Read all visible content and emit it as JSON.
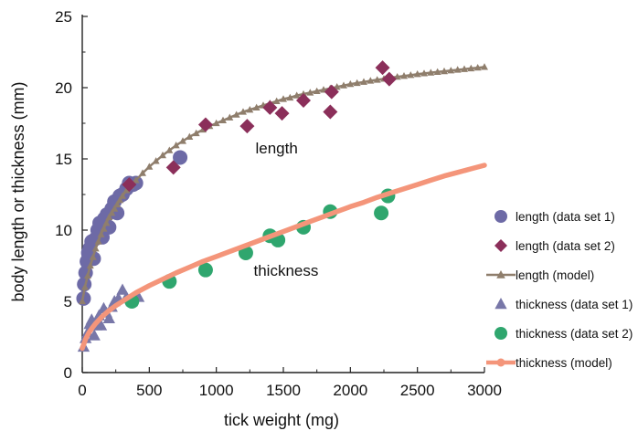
{
  "chart_data": {
    "type": "scatter",
    "xlabel": "tick weight (mg)",
    "ylabel": "body length or thickness (mm)",
    "xlim": [
      0,
      3000
    ],
    "ylim": [
      0,
      25
    ],
    "xticks": [
      0,
      500,
      1000,
      1500,
      2000,
      2500,
      3000
    ],
    "yticks": [
      0,
      5,
      10,
      15,
      20,
      25
    ],
    "grid": false,
    "legend_position": "right",
    "annotations": [
      {
        "text": "length",
        "x": 1450,
        "y": 15.4
      },
      {
        "text": "thickness",
        "x": 1520,
        "y": 6.8
      }
    ],
    "series": [
      {
        "name": "length (data set 1)",
        "kind": "scatter",
        "marker": "circle",
        "color": "#6d6aa6",
        "points": [
          [
            10,
            5.2
          ],
          [
            15,
            6.2
          ],
          [
            25,
            7.0
          ],
          [
            35,
            7.8
          ],
          [
            45,
            8.4
          ],
          [
            55,
            8.7
          ],
          [
            70,
            9.2
          ],
          [
            85,
            8.0
          ],
          [
            100,
            9.4
          ],
          [
            115,
            10.0
          ],
          [
            130,
            10.5
          ],
          [
            150,
            9.5
          ],
          [
            165,
            10.8
          ],
          [
            185,
            11.1
          ],
          [
            200,
            10.2
          ],
          [
            220,
            11.5
          ],
          [
            240,
            12.0
          ],
          [
            260,
            11.2
          ],
          [
            280,
            12.4
          ],
          [
            300,
            12.5
          ],
          [
            330,
            12.9
          ],
          [
            350,
            13.3
          ],
          [
            380,
            13.2
          ],
          [
            400,
            13.3
          ],
          [
            730,
            15.1
          ]
        ]
      },
      {
        "name": "length (data set 2)",
        "kind": "scatter",
        "marker": "diamond",
        "color": "#8b2f5a",
        "points": [
          [
            350,
            13.2
          ],
          [
            680,
            14.4
          ],
          [
            920,
            17.4
          ],
          [
            1230,
            17.3
          ],
          [
            1400,
            18.6
          ],
          [
            1490,
            18.2
          ],
          [
            1650,
            19.1
          ],
          [
            1850,
            18.3
          ],
          [
            1860,
            19.7
          ],
          [
            2240,
            21.4
          ],
          [
            2290,
            20.6
          ]
        ]
      },
      {
        "name": "length (model)",
        "kind": "line",
        "marker": "triangle",
        "color": "#8f7e6c",
        "x": [
          0,
          20,
          40,
          60,
          80,
          100,
          120,
          140,
          160,
          180,
          200,
          220,
          240,
          260,
          280,
          300,
          330,
          360,
          400,
          450,
          500,
          550,
          600,
          650,
          700,
          750,
          800,
          850,
          900,
          950,
          1000,
          1050,
          1100,
          1150,
          1200,
          1250,
          1300,
          1350,
          1400,
          1450,
          1500,
          1550,
          1600,
          1650,
          1700,
          1750,
          1800,
          1850,
          1900,
          1950,
          2000,
          2050,
          2100,
          2150,
          2200,
          2250,
          2300,
          2350,
          2400,
          2450,
          2500,
          2550,
          2600,
          2650,
          2700,
          2750,
          2800,
          2850,
          2900,
          2950,
          3000
        ],
        "values": [
          5.0,
          6.0,
          6.8,
          7.5,
          8.1,
          8.7,
          9.2,
          9.7,
          10.1,
          10.5,
          10.9,
          11.2,
          11.5,
          11.8,
          12.1,
          12.4,
          12.8,
          13.1,
          13.5,
          14.0,
          14.45,
          14.85,
          15.25,
          15.6,
          15.95,
          16.25,
          16.55,
          16.8,
          17.05,
          17.3,
          17.5,
          17.7,
          17.9,
          18.1,
          18.3,
          18.45,
          18.6,
          18.75,
          18.9,
          19.05,
          19.2,
          19.3,
          19.45,
          19.55,
          19.65,
          19.75,
          19.85,
          19.95,
          20.05,
          20.15,
          20.25,
          20.32,
          20.4,
          20.48,
          20.55,
          20.62,
          20.7,
          20.76,
          20.82,
          20.88,
          20.95,
          21.0,
          21.05,
          21.1,
          21.15,
          21.2,
          21.25,
          21.3,
          21.35,
          21.4,
          21.45
        ]
      },
      {
        "name": "thickness (data set 1)",
        "kind": "scatter",
        "marker": "triangle",
        "color": "#7877a8",
        "points": [
          [
            10,
            1.8
          ],
          [
            25,
            2.4
          ],
          [
            40,
            2.8
          ],
          [
            55,
            3.4
          ],
          [
            70,
            3.7
          ],
          [
            90,
            2.6
          ],
          [
            105,
            3.3
          ],
          [
            125,
            4.0
          ],
          [
            140,
            3.3
          ],
          [
            160,
            4.5
          ],
          [
            180,
            4.2
          ],
          [
            200,
            3.8
          ],
          [
            220,
            4.6
          ],
          [
            240,
            5.0
          ],
          [
            270,
            5.2
          ],
          [
            300,
            5.8
          ],
          [
            330,
            5.3
          ],
          [
            370,
            5.0
          ],
          [
            420,
            5.3
          ]
        ]
      },
      {
        "name": "thickness (data set 2)",
        "kind": "scatter",
        "marker": "circle",
        "color": "#2fa66e",
        "points": [
          [
            370,
            5.0
          ],
          [
            650,
            6.4
          ],
          [
            920,
            7.2
          ],
          [
            1220,
            8.4
          ],
          [
            1400,
            9.6
          ],
          [
            1460,
            9.3
          ],
          [
            1650,
            10.2
          ],
          [
            1850,
            11.3
          ],
          [
            2230,
            11.2
          ],
          [
            2280,
            12.4
          ]
        ]
      },
      {
        "name": "thickness (model)",
        "kind": "line",
        "marker": "circle",
        "color": "#f4957a",
        "x": [
          0,
          25,
          50,
          75,
          100,
          150,
          200,
          250,
          300,
          350,
          400,
          500,
          600,
          700,
          800,
          900,
          1000,
          1100,
          1200,
          1300,
          1400,
          1500,
          1600,
          1700,
          1800,
          1900,
          2000,
          2100,
          2200,
          2300,
          2400,
          2500,
          2600,
          2700,
          2800,
          2900,
          3000
        ],
        "values": [
          1.7,
          2.35,
          2.8,
          3.15,
          3.45,
          3.95,
          4.35,
          4.7,
          5.0,
          5.3,
          5.6,
          6.1,
          6.55,
          7.0,
          7.4,
          7.8,
          8.15,
          8.5,
          8.85,
          9.2,
          9.55,
          9.9,
          10.25,
          10.6,
          10.95,
          11.3,
          11.65,
          11.95,
          12.3,
          12.6,
          12.9,
          13.2,
          13.5,
          13.8,
          14.05,
          14.3,
          14.55
        ]
      }
    ]
  }
}
